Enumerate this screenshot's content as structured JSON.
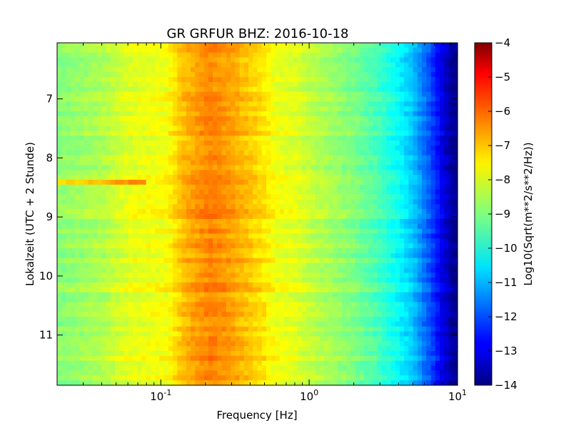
{
  "chart_data": {
    "type": "heatmap",
    "title": "GR GRFUR BHZ: 2016-10-18",
    "xlabel": "Frequency [Hz]",
    "ylabel": "Lokalzeit (UTC + 2 Stunde)",
    "colorbar_label": "Log10(Sqrt(m**2/s**2/Hz))",
    "x_scale": "log",
    "xlim": [
      0.02,
      10
    ],
    "ylim": [
      6.05,
      11.85
    ],
    "y_inverted": true,
    "colormap": "jet",
    "clim": [
      -14,
      -4
    ],
    "x_ticks": [
      {
        "value": 0.1,
        "base": "10",
        "exp": "-1"
      },
      {
        "value": 1,
        "base": "10",
        "exp": "0"
      },
      {
        "value": 10,
        "base": "10",
        "exp": "1"
      }
    ],
    "y_ticks": [
      {
        "value": 7,
        "label": "7"
      },
      {
        "value": 8,
        "label": "8"
      },
      {
        "value": 9,
        "label": "9"
      },
      {
        "value": 10,
        "label": "10"
      },
      {
        "value": 11,
        "label": "11"
      }
    ],
    "colorbar_ticks": [
      {
        "value": -4,
        "label": "−4"
      },
      {
        "value": -5,
        "label": "−5"
      },
      {
        "value": -6,
        "label": "−6"
      },
      {
        "value": -7,
        "label": "−7"
      },
      {
        "value": -8,
        "label": "−8"
      },
      {
        "value": -9,
        "label": "−9"
      },
      {
        "value": -10,
        "label": "−10"
      },
      {
        "value": -11,
        "label": "−11"
      },
      {
        "value": -12,
        "label": "−12"
      },
      {
        "value": -13,
        "label": "−13"
      },
      {
        "value": -14,
        "label": "−14"
      }
    ],
    "spectrum_profile": [
      {
        "f": 0.02,
        "v": -8.9
      },
      {
        "f": 0.04,
        "v": -8.5
      },
      {
        "f": 0.06,
        "v": -8.0
      },
      {
        "f": 0.08,
        "v": -7.9
      },
      {
        "f": 0.11,
        "v": -7.8
      },
      {
        "f": 0.14,
        "v": -7.1
      },
      {
        "f": 0.18,
        "v": -6.7
      },
      {
        "f": 0.22,
        "v": -6.5
      },
      {
        "f": 0.3,
        "v": -6.8
      },
      {
        "f": 0.4,
        "v": -7.2
      },
      {
        "f": 0.5,
        "v": -7.5
      },
      {
        "f": 0.6,
        "v": -7.9
      },
      {
        "f": 0.8,
        "v": -8.0
      },
      {
        "f": 1.0,
        "v": -8.3
      },
      {
        "f": 1.5,
        "v": -8.7
      },
      {
        "f": 2.0,
        "v": -9.0
      },
      {
        "f": 3.0,
        "v": -9.6
      },
      {
        "f": 4.0,
        "v": -10.2
      },
      {
        "f": 5.0,
        "v": -10.8
      },
      {
        "f": 6.0,
        "v": -11.6
      },
      {
        "f": 7.0,
        "v": -12.3
      },
      {
        "f": 8.0,
        "v": -13.0
      },
      {
        "f": 9.0,
        "v": -13.6
      },
      {
        "f": 10.0,
        "v": -13.9
      }
    ],
    "events": [
      {
        "t_start": 8.37,
        "t_end": 8.47,
        "f_max": 0.08,
        "delta": 1.2
      }
    ]
  }
}
